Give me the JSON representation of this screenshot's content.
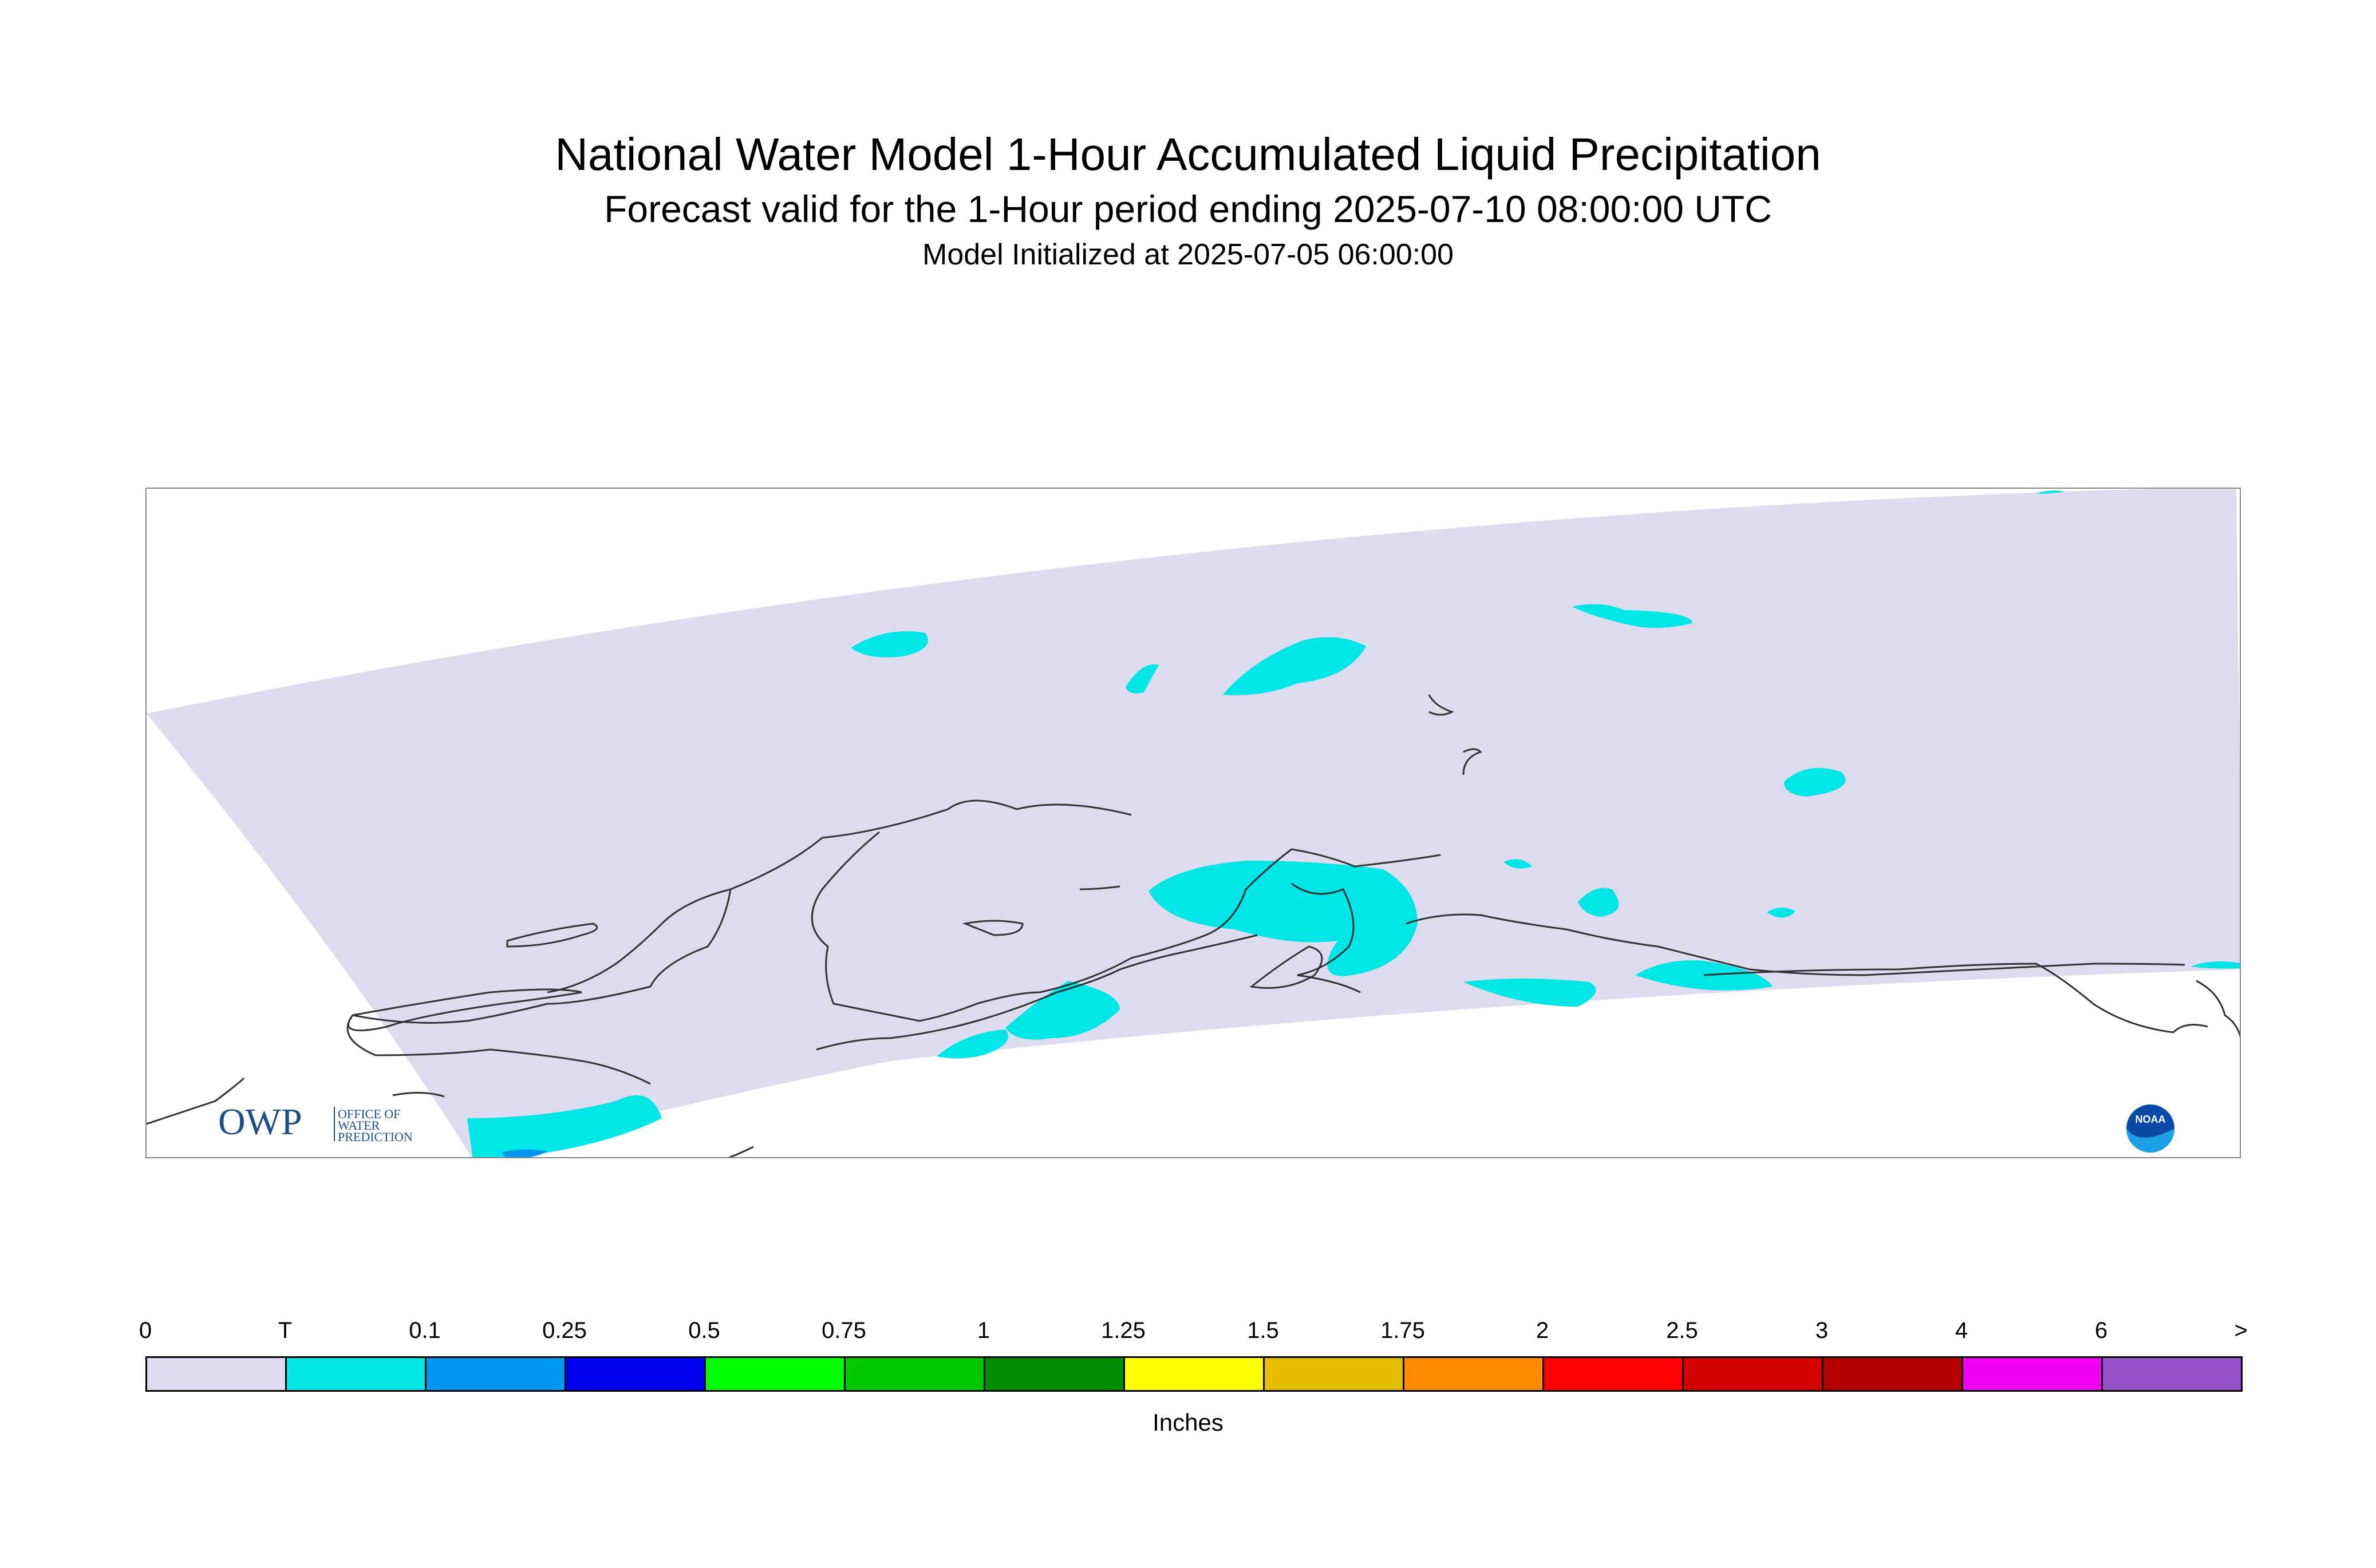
{
  "title": {
    "line1": "National Water Model 1-Hour Accumulated Liquid Precipitation",
    "line2": "Forecast valid for the 1-Hour period ending 2025-07-10 08:00:00 UTC",
    "line3": "Model Initialized at 2025-07-05 06:00:00"
  },
  "logos": {
    "owp_text": "OWP",
    "owp_lines": [
      "OFFICE OF",
      "WATER",
      "PREDICTION"
    ],
    "noaa_text": "NOAA"
  },
  "colors": {
    "domain_fill": "#dcdcee",
    "trace_fill": "#00e5e5",
    "coastline": "#333333"
  },
  "legend": {
    "units": "Inches",
    "labels": [
      "0",
      "T",
      "0.1",
      "0.25",
      "0.5",
      "0.75",
      "1",
      "1.25",
      "1.5",
      "1.75",
      "2",
      "2.5",
      "3",
      "4",
      "6",
      ">"
    ],
    "colors": [
      "#dcdcee",
      "#00e5e5",
      "#0096f0",
      "#0000f0",
      "#00ff00",
      "#00c800",
      "#008c00",
      "#ffff00",
      "#e6be00",
      "#ff8c00",
      "#ff0000",
      "#d20000",
      "#b40000",
      "#f000f0",
      "#9650c8"
    ]
  }
}
